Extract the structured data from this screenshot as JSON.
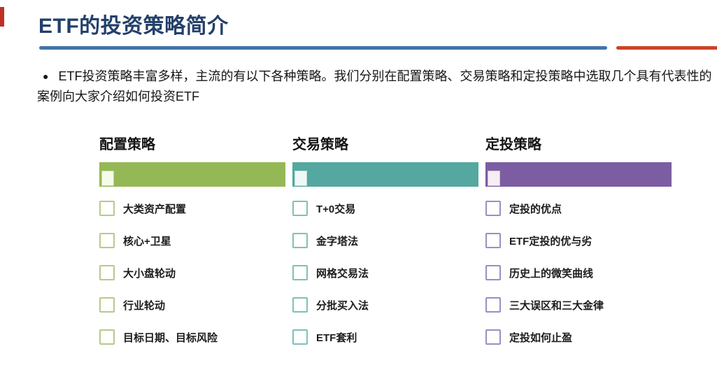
{
  "title": "ETF的投资策略简介",
  "intro": {
    "bullet": "●",
    "text": "ETF投资策略丰富多样，主流的有以下各种策略。我们分别在配置策略、交易策略和定投策略中选取几个具有代表性的案例向大家介绍如何投资ETF"
  },
  "colors": {
    "title": "#24406b",
    "divider_blue": "#4473a9",
    "divider_red": "#cd4226",
    "accent_red": "#bf3124"
  },
  "columns": [
    {
      "header": "配置策略",
      "bar_color": "#94b855",
      "square_fill": "#f6fae8",
      "square_border": "#c6d69c",
      "checkbox_color": "#b5ca8a",
      "items": [
        "大类资产配置",
        "核心+卫星",
        "大小盘轮动",
        "行业轮动",
        "目标日期、目标风险"
      ]
    },
    {
      "header": "交易策略",
      "bar_color": "#54a8a0",
      "square_fill": "#f0f8f6",
      "square_border": "#bcdcd7",
      "checkbox_color": "#7fc0b9",
      "items": [
        "T+0交易",
        "金字塔法",
        "网格交易法",
        "分批买入法",
        "ETF套利"
      ]
    },
    {
      "header": "定投策略",
      "bar_color": "#7c5da2",
      "square_fill": "#f7eef4",
      "square_border": "#cdbcd8",
      "checkbox_color": "#9b8ec5",
      "items": [
        "定投的优点",
        "ETF定投的优与劣",
        "历史上的微笑曲线",
        "三大误区和三大金律",
        "定投如何止盈"
      ]
    }
  ]
}
